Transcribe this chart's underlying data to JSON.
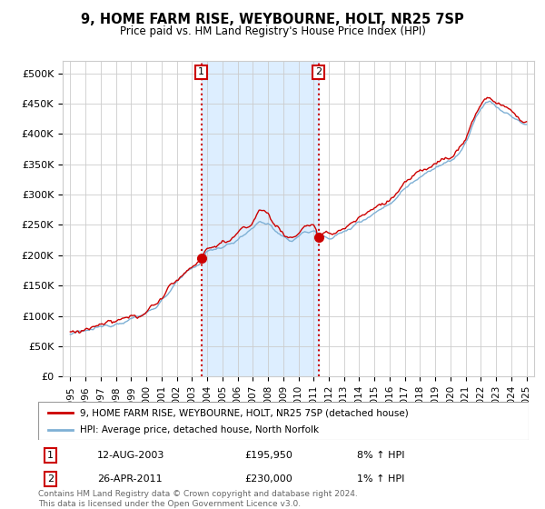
{
  "title": "9, HOME FARM RISE, WEYBOURNE, HOLT, NR25 7SP",
  "subtitle": "Price paid vs. HM Land Registry's House Price Index (HPI)",
  "background_color": "#ffffff",
  "plot_bg_color": "#ffffff",
  "grid_color": "#cccccc",
  "purchase1": {
    "date_num": 2003.62,
    "price": 195950,
    "label": "1",
    "date_str": "12-AUG-2003",
    "price_str": "£195,950",
    "hpi_str": "8% ↑ HPI"
  },
  "purchase2": {
    "date_num": 2011.32,
    "price": 230000,
    "label": "2",
    "date_str": "26-APR-2011",
    "price_str": "£230,000",
    "hpi_str": "1% ↑ HPI"
  },
  "hpi_line_color": "#7eb0d5",
  "price_line_color": "#cc0000",
  "vline_color": "#cc0000",
  "shade_color": "#ddeeff",
  "xlim": [
    1994.5,
    2025.5
  ],
  "ylim": [
    0,
    520000
  ],
  "yticks": [
    0,
    50000,
    100000,
    150000,
    200000,
    250000,
    300000,
    350000,
    400000,
    450000,
    500000
  ],
  "ytick_labels": [
    "£0",
    "£50K",
    "£100K",
    "£150K",
    "£200K",
    "£250K",
    "£300K",
    "£350K",
    "£400K",
    "£450K",
    "£500K"
  ],
  "xticks": [
    1995,
    1996,
    1997,
    1998,
    1999,
    2000,
    2001,
    2002,
    2003,
    2004,
    2005,
    2006,
    2007,
    2008,
    2009,
    2010,
    2011,
    2012,
    2013,
    2014,
    2015,
    2016,
    2017,
    2018,
    2019,
    2020,
    2021,
    2022,
    2023,
    2024,
    2025
  ],
  "legend_property_label": "9, HOME FARM RISE, WEYBOURNE, HOLT, NR25 7SP (detached house)",
  "legend_hpi_label": "HPI: Average price, detached house, North Norfolk",
  "footnote": "Contains HM Land Registry data © Crown copyright and database right 2024.\nThis data is licensed under the Open Government Licence v3.0."
}
